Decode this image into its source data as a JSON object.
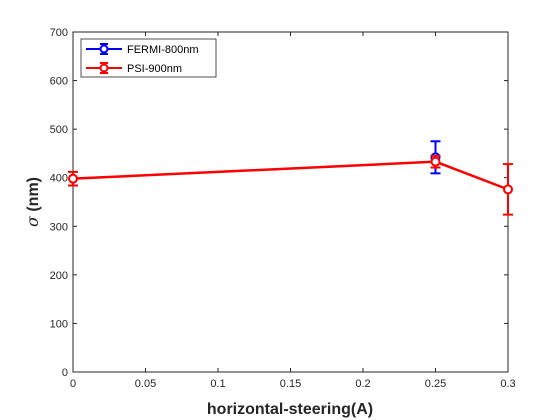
{
  "chart_data": {
    "type": "line",
    "xlabel": "horizontal-steering(A)",
    "ylabel_symbol": "σ",
    "ylabel_unit": " (nm)",
    "xlim": [
      0,
      0.3
    ],
    "ylim": [
      0,
      700
    ],
    "xticks": [
      0,
      0.05,
      0.1,
      0.15,
      0.2,
      0.25,
      0.3
    ],
    "xtick_labels": [
      "0",
      "0.05",
      "0.1",
      "0.15",
      "0.2",
      "0.25",
      "0.3"
    ],
    "yticks": [
      0,
      100,
      200,
      300,
      400,
      500,
      600,
      700
    ],
    "ytick_labels": [
      "0",
      "100",
      "200",
      "300",
      "400",
      "500",
      "600",
      "700"
    ],
    "grid": false,
    "legend_position": "top-left",
    "series": [
      {
        "name": "FERMI-800nm",
        "color": "#0000ff",
        "points": [
          {
            "x": 0.25,
            "y": 442,
            "err": 33
          }
        ]
      },
      {
        "name": "PSI-900nm",
        "color": "#ff0000",
        "points": [
          {
            "x": 0,
            "y": 398,
            "err": 14
          },
          {
            "x": 0.25,
            "y": 433,
            "err": 12
          },
          {
            "x": 0.3,
            "y": 376,
            "err": 52
          }
        ]
      }
    ]
  }
}
